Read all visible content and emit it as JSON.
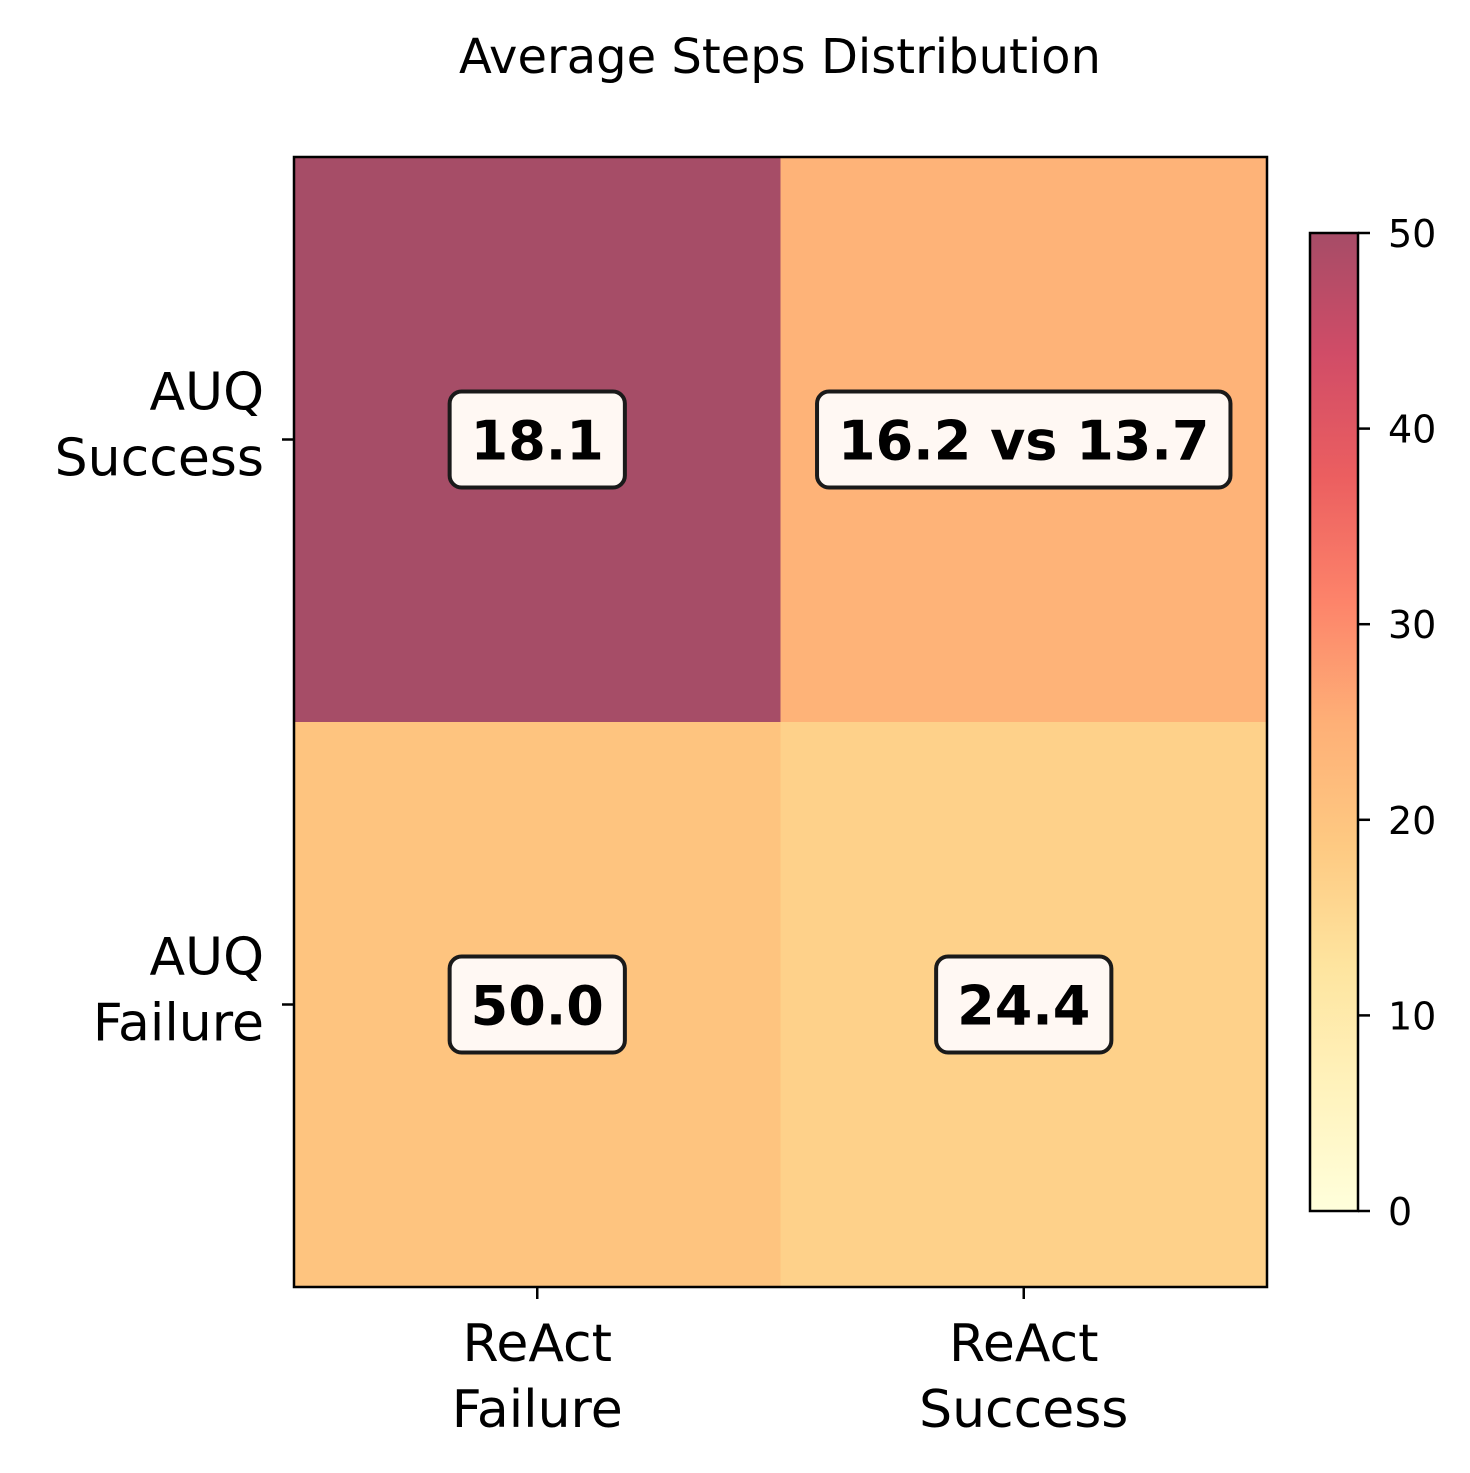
{
  "chart_data": {
    "type": "heatmap",
    "title": "Average Steps Distribution",
    "xlabel": "",
    "ylabel": "",
    "x_categories": [
      "ReAct\nFailure",
      "ReAct\nSuccess"
    ],
    "y_categories": [
      "AUQ\nSuccess",
      "AUQ\nFailure"
    ],
    "color_values": [
      [
        50,
        24
      ],
      [
        20,
        17
      ]
    ],
    "cell_labels": [
      [
        "18.1",
        "16.2 vs 13.7"
      ],
      [
        "50.0",
        "24.4"
      ]
    ],
    "colorbar": {
      "min": 0,
      "max": 50,
      "ticks": [
        "0",
        "10",
        "20",
        "30",
        "40",
        "50"
      ],
      "colormap": "YlOrRd"
    },
    "colors": {
      "cell_alpha": 0.7,
      "label_box_fill": "#fff8f3",
      "label_box_stroke": "#1a1a1a"
    }
  }
}
